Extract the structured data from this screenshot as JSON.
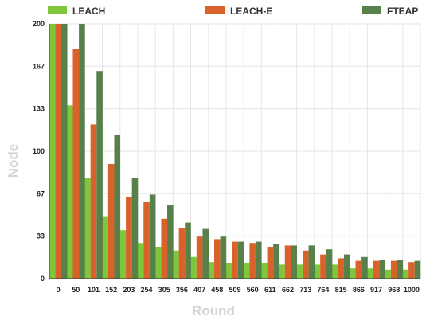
{
  "chart_data": {
    "type": "bar",
    "xlabel": "Round",
    "ylabel": "Node",
    "ylim": [
      0,
      200
    ],
    "yticks": [
      "0",
      "33",
      "67",
      "100",
      "133",
      "167",
      "200"
    ],
    "ytick_values": [
      0,
      33.3,
      66.7,
      100,
      133.3,
      166.7,
      200
    ],
    "categories": [
      "0",
      "50",
      "101",
      "152",
      "203",
      "254",
      "305",
      "356",
      "407",
      "458",
      "509",
      "560",
      "611",
      "662",
      "713",
      "764",
      "815",
      "866",
      "917",
      "968",
      "1000"
    ],
    "grid": true,
    "legend_position": "top",
    "series": [
      {
        "name": "LEACH",
        "color": "#7ec63a",
        "values": [
          200,
          136,
          79,
          49,
          38,
          28,
          25,
          22,
          17,
          13,
          12,
          12,
          12,
          11,
          11,
          11,
          11,
          8,
          8,
          7,
          7
        ]
      },
      {
        "name": "LEACH-E",
        "color": "#d9622b",
        "values": [
          200,
          180,
          121,
          90,
          64,
          60,
          47,
          40,
          33,
          31,
          29,
          28,
          25,
          26,
          22,
          19,
          16,
          14,
          14,
          14,
          13
        ]
      },
      {
        "name": "FTEAP",
        "color": "#58804a",
        "values": [
          200,
          200,
          163,
          113,
          79,
          66,
          58,
          44,
          39,
          33,
          29,
          29,
          27,
          26,
          26,
          23,
          19,
          17,
          15,
          15,
          14
        ]
      }
    ]
  }
}
